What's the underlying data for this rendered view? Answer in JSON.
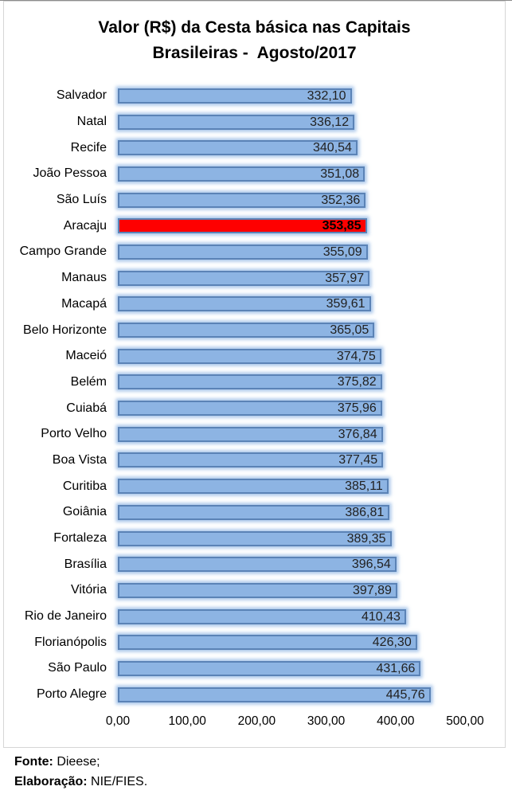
{
  "header": {
    "title_lines": [
      "Valor (R$) da Cesta básica nas Capitais",
      "Brasileiras -  Agosto/2017"
    ]
  },
  "chart_data": {
    "type": "bar",
    "orientation": "horizontal",
    "title": "Valor (R$) da Cesta básica nas Capitais Brasileiras - Agosto/2017",
    "categories": [
      "Salvador",
      "Natal",
      "Recife",
      "João Pessoa",
      "São Luís",
      "Aracaju",
      "Campo Grande",
      "Manaus",
      "Macapá",
      "Belo Horizonte",
      "Maceió",
      "Belém",
      "Cuiabá",
      "Porto Velho",
      "Boa Vista",
      "Curitiba",
      "Goiânia",
      "Fortaleza",
      "Brasília",
      "Vitória",
      "Rio de Janeiro",
      "Florianópolis",
      "São Paulo",
      "Porto Alegre"
    ],
    "values": [
      332.1,
      336.12,
      340.54,
      351.08,
      352.36,
      353.85,
      355.09,
      357.97,
      359.61,
      365.05,
      374.75,
      375.82,
      375.96,
      376.84,
      377.45,
      385.11,
      386.81,
      389.35,
      396.54,
      397.89,
      410.43,
      426.3,
      431.66,
      445.76
    ],
    "value_labels": [
      "332,10",
      "336,12",
      "340,54",
      "351,08",
      "352,36",
      "353,85",
      "355,09",
      "357,97",
      "359,61",
      "365,05",
      "374,75",
      "375,82",
      "375,96",
      "376,84",
      "377,45",
      "385,11",
      "386,81",
      "389,35",
      "396,54",
      "397,89",
      "410,43",
      "426,30",
      "431,66",
      "445,76"
    ],
    "highlight_category": "Aracaju",
    "highlight_color": "#FE0000",
    "bar_fill": "#8DB4E3",
    "bar_border": "#5B83B6",
    "xlim": [
      0,
      500
    ],
    "x_ticks": [
      "0,00",
      "100,00",
      "200,00",
      "300,00",
      "400,00",
      "500,00"
    ],
    "grid": false,
    "legend": false,
    "xlabel": "",
    "ylabel": ""
  },
  "footer": {
    "source_label": "Fonte:",
    "source_value": " Dieese;",
    "elaboration_label": "Elaboração:",
    "elaboration_value": " NIE/FIES."
  }
}
